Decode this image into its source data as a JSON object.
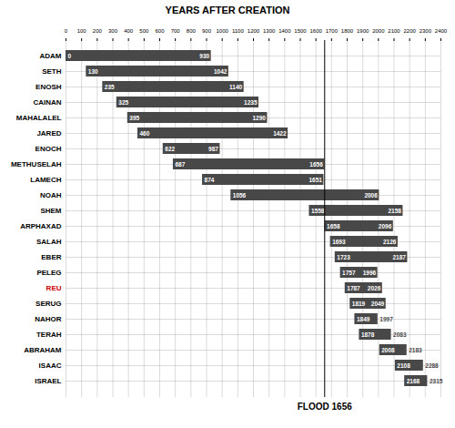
{
  "chart_data": {
    "type": "bar",
    "orientation": "horizontal",
    "title": "YEARS AFTER CREATION",
    "categories": [
      "ADAM",
      "SETH",
      "ENOSH",
      "CAINAN",
      "MAHALALEL",
      "JARED",
      "ENOCH",
      "METHUSELAH",
      "LAMECH",
      "NOAH",
      "SHEM",
      "ARPHAXAD",
      "SALAH",
      "EBER",
      "PELEG",
      "REU",
      "SERUG",
      "NAHOR",
      "TERAH",
      "ABRAHAM",
      "ISAAC",
      "ISRAEL"
    ],
    "start": [
      0,
      130,
      235,
      325,
      395,
      460,
      622,
      687,
      874,
      1056,
      1558,
      1658,
      1693,
      1723,
      1757,
      1787,
      1819,
      1849,
      1878,
      2008,
      2108,
      2168
    ],
    "end": [
      930,
      1042,
      1140,
      1235,
      1290,
      1422,
      987,
      1656,
      1651,
      2006,
      2158,
      2096,
      2126,
      2187,
      1996,
      2026,
      2049,
      1997,
      2083,
      2183,
      2288,
      2315
    ],
    "category_colors": [
      "#000000",
      "#000000",
      "#000000",
      "#000000",
      "#000000",
      "#000000",
      "#000000",
      "#000000",
      "#000000",
      "#000000",
      "#000000",
      "#000000",
      "#000000",
      "#000000",
      "#000000",
      "#cc0000",
      "#000000",
      "#000000",
      "#000000",
      "#000000",
      "#000000",
      "#000000"
    ],
    "color": "#484848",
    "data_labels": true,
    "xlim": [
      0,
      2400
    ],
    "xticks": [
      0,
      100,
      200,
      300,
      400,
      500,
      600,
      700,
      800,
      900,
      1000,
      1100,
      1200,
      1300,
      1400,
      1500,
      1600,
      1700,
      1800,
      1900,
      2000,
      2100,
      2200,
      2300,
      2400
    ],
    "grid": true,
    "annotations": [
      {
        "type": "vline",
        "x": 1656,
        "text": "FLOOD 1656",
        "color": "#000000"
      }
    ]
  }
}
